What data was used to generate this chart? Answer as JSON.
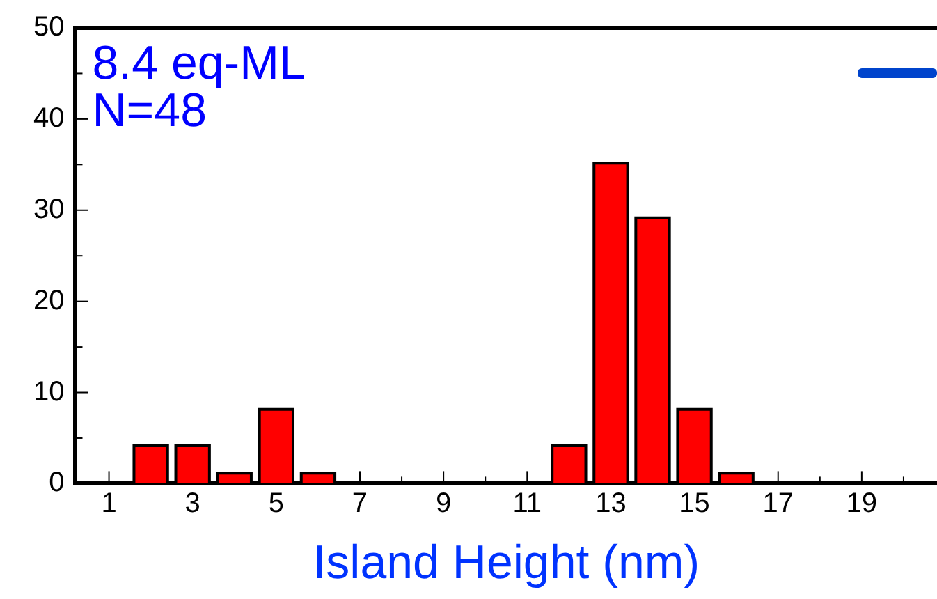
{
  "chart_data": {
    "type": "bar",
    "xlabel": "Island Height (nm)",
    "annotations": [
      "8.4 eq-ML",
      "N=48"
    ],
    "x": [
      2,
      3,
      4,
      5,
      6,
      12,
      13,
      14,
      15,
      16
    ],
    "values": [
      4,
      4,
      1,
      8,
      1,
      4,
      35,
      29,
      8,
      1
    ],
    "color": "#ff0000",
    "xlim": [
      0.2,
      20.8
    ],
    "xticks": [
      1,
      {
        "value": 2,
        "label": null
      },
      3,
      {
        "value": 4,
        "label": null
      },
      5,
      {
        "value": 6,
        "label": null
      },
      7,
      {
        "value": 8,
        "label": null
      },
      9,
      {
        "value": 10,
        "label": null
      },
      11,
      {
        "value": 12,
        "label": null
      },
      13,
      {
        "value": 14,
        "label": null
      },
      15,
      {
        "value": 16,
        "label": null
      },
      17,
      {
        "value": 18,
        "label": null
      },
      19,
      {
        "value": 20,
        "label": null
      }
    ],
    "ylim": [
      0,
      50
    ],
    "yticks": [
      0,
      {
        "value": 5,
        "label": null
      },
      10,
      {
        "value": 15,
        "label": null
      },
      20,
      {
        "value": 25,
        "label": null
      },
      30,
      {
        "value": 35,
        "label": null
      },
      40,
      {
        "value": 45,
        "label": null
      },
      50
    ],
    "grid": false,
    "legend": false
  }
}
